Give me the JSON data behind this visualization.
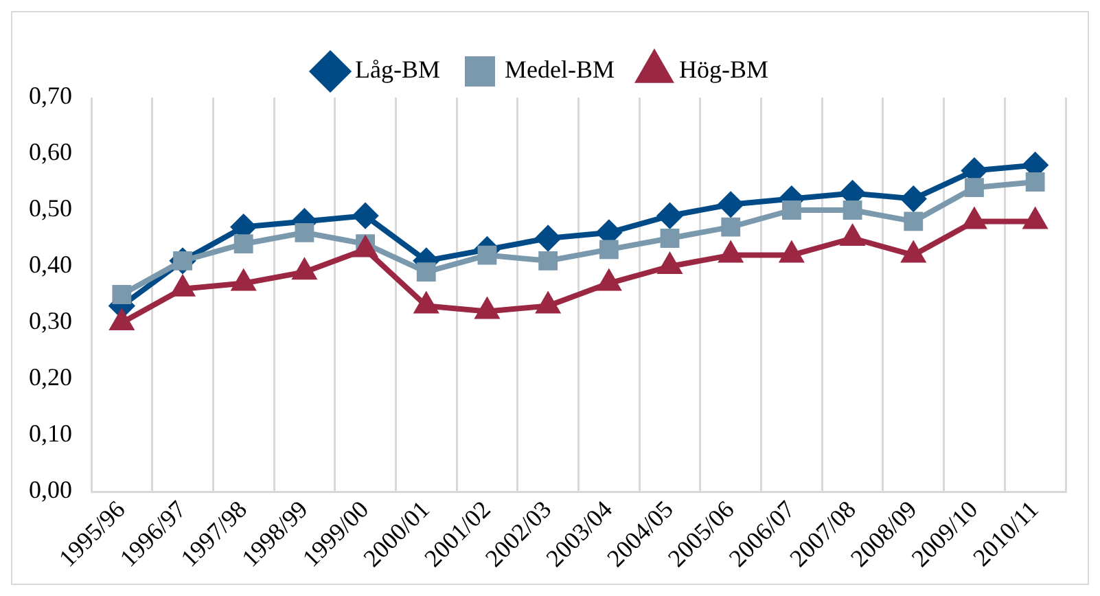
{
  "chart_data": {
    "type": "line",
    "categories": [
      "1995/96",
      "1996/97",
      "1997/98",
      "1998/99",
      "1999/00",
      "2000/01",
      "2001/02",
      "2002/03",
      "2003/04",
      "2004/05",
      "2005/06",
      "2006/07",
      "2007/08",
      "2008/09",
      "2009/10",
      "2010/11"
    ],
    "series": [
      {
        "name": "Låg-BM",
        "color": "#004b87",
        "marker": "diamond",
        "values": [
          0.33,
          0.41,
          0.47,
          0.48,
          0.49,
          0.41,
          0.43,
          0.45,
          0.46,
          0.49,
          0.51,
          0.52,
          0.53,
          0.52,
          0.57,
          0.58
        ]
      },
      {
        "name": "Medel-BM",
        "color": "#7a99ad",
        "marker": "square",
        "values": [
          0.35,
          0.41,
          0.44,
          0.46,
          0.44,
          0.39,
          0.42,
          0.41,
          0.43,
          0.45,
          0.47,
          0.5,
          0.5,
          0.48,
          0.54,
          0.55
        ]
      },
      {
        "name": "Hög-BM",
        "color": "#9b2743",
        "marker": "triangle",
        "values": [
          0.3,
          0.36,
          0.37,
          0.39,
          0.43,
          0.33,
          0.32,
          0.33,
          0.37,
          0.4,
          0.42,
          0.42,
          0.45,
          0.42,
          0.48,
          0.48
        ]
      }
    ],
    "ylim": [
      0,
      0.7
    ],
    "yticks": [
      {
        "value": 0,
        "label": "0,00"
      },
      {
        "value": 0.1,
        "label": "0,10"
      },
      {
        "value": 0.2,
        "label": "0,20"
      },
      {
        "value": 0.3,
        "label": "0,30"
      },
      {
        "value": 0.4,
        "label": "0,40"
      },
      {
        "value": 0.5,
        "label": "0,50"
      },
      {
        "value": 0.6,
        "label": "0,60"
      },
      {
        "value": 0.7,
        "label": "0,70"
      }
    ],
    "grid": "x",
    "legend": "top",
    "line_style": "solid"
  }
}
